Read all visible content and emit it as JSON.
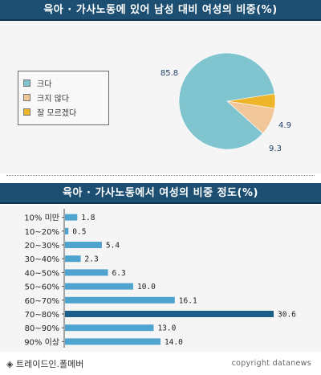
{
  "colors": {
    "header_bg": "#1d4f72",
    "pie_large": "#7fc4cf",
    "pie_medium": "#f1c79a",
    "pie_small": "#eeb52a",
    "bar_default": "#4ea3cf",
    "bar_highlight": "#1a5e8a"
  },
  "chart_data": [
    {
      "type": "pie",
      "title": "육아 · 가사노동에 있어 남성 대비 여성의 비중(%)",
      "legend_position": "left",
      "slices": [
        {
          "label": "크다",
          "value": 85.8,
          "value_label": "85.8",
          "color": "#7fc4cf"
        },
        {
          "label": "크지 않다",
          "value": 9.3,
          "value_label": "9.3",
          "color": "#f1c79a"
        },
        {
          "label": "잘 모르겠다",
          "value": 4.9,
          "value_label": "4.9",
          "color": "#eeb52a"
        }
      ]
    },
    {
      "type": "bar",
      "orientation": "horizontal",
      "title": "육아 · 가사노동에서 여성의 비중 정도(%)",
      "categories": [
        "10% 미만",
        "10~20%",
        "20~30%",
        "30~40%",
        "40~50%",
        "50~60%",
        "60~70%",
        "70~80%",
        "80~90%",
        "90% 이상"
      ],
      "values": [
        1.8,
        0.5,
        5.4,
        2.3,
        6.3,
        10.0,
        16.1,
        30.6,
        13.0,
        14.0
      ],
      "value_labels": [
        "1.8",
        "0.5",
        "5.4",
        "2.3",
        "6.3",
        "10.0",
        "16.1",
        "30.6",
        "13.0",
        "14.0"
      ],
      "highlight_index": 7,
      "xlim": [
        0,
        30.6
      ]
    }
  ],
  "footer": {
    "source": "◈ 트레이드인.폴메버",
    "copyright": "copyright datanews"
  }
}
